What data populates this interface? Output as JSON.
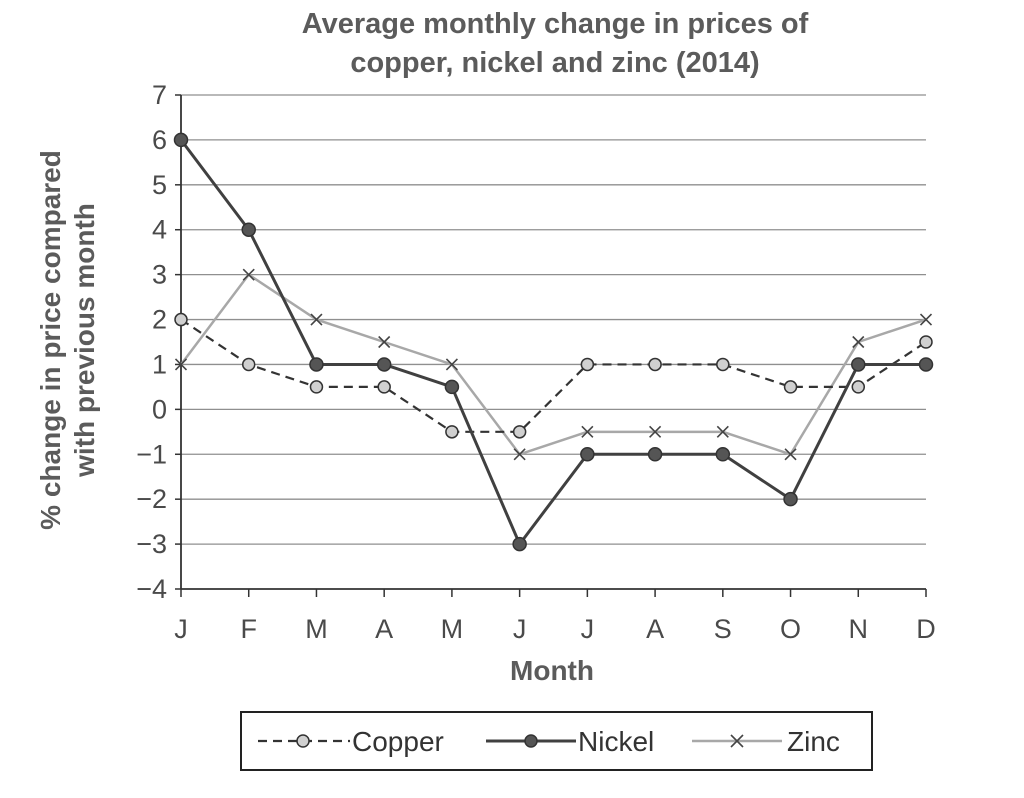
{
  "chart_data": {
    "type": "line",
    "title_lines": [
      "Average monthly change in prices of",
      "copper, nickel and zinc (2014)"
    ],
    "xlabel": "Month",
    "ylabel_lines": [
      "% change in price compared",
      "with previous month"
    ],
    "categories": [
      "J",
      "F",
      "M",
      "A",
      "M",
      "J",
      "J",
      "A",
      "S",
      "O",
      "N",
      "D"
    ],
    "ylim": [
      -4,
      7
    ],
    "yticks": [
      "7",
      "6",
      "5",
      "4",
      "3",
      "2",
      "1",
      "0",
      "−1",
      "−2",
      "−3",
      "−4"
    ],
    "grid": true,
    "legend_position": "bottom",
    "series": [
      {
        "name": "Copper",
        "style": "dashed",
        "marker": "open-circle",
        "color": "#333333",
        "values": [
          2,
          1,
          0.5,
          0.5,
          -0.5,
          -0.5,
          1,
          1,
          1,
          0.5,
          0.5,
          1.5
        ]
      },
      {
        "name": "Nickel",
        "style": "solid",
        "marker": "filled-circle",
        "color": "#404040",
        "values": [
          6,
          4,
          1,
          1,
          0.5,
          -3,
          -1,
          -1,
          -1,
          -2,
          1,
          1
        ]
      },
      {
        "name": "Zinc",
        "style": "solid",
        "marker": "cross",
        "color": "#a8a8a8",
        "values": [
          1,
          3,
          2,
          1.5,
          1,
          -1,
          -0.5,
          -0.5,
          -0.5,
          -1,
          1.5,
          2
        ]
      }
    ]
  }
}
